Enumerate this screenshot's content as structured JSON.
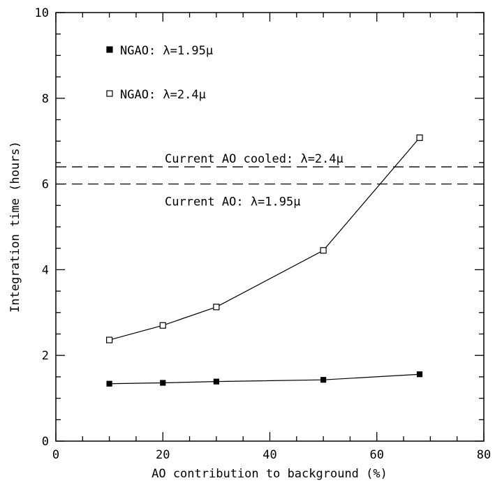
{
  "chart_data": {
    "type": "line",
    "xlabel": "AO contribution to background (%)",
    "ylabel": "Integration time (hours)",
    "xlim": [
      0,
      80
    ],
    "ylim": [
      0,
      10
    ],
    "x_major_ticks": [
      0,
      20,
      40,
      60,
      80
    ],
    "y_major_ticks": [
      0,
      2,
      4,
      6,
      8,
      10
    ],
    "x_minor_step": 5,
    "y_minor_step": 0.5,
    "grid": false,
    "series": [
      {
        "name": "NGAO: λ=1.95μ",
        "marker": "filled-square",
        "x": [
          10,
          20,
          30,
          50,
          68
        ],
        "y": [
          1.34,
          1.36,
          1.39,
          1.43,
          1.56
        ]
      },
      {
        "name": "NGAO: λ=2.4μ",
        "marker": "open-square",
        "x": [
          10,
          20,
          30,
          50,
          68
        ],
        "y": [
          2.36,
          2.7,
          3.13,
          4.45,
          7.08
        ]
      }
    ],
    "reference_lines": [
      {
        "label": "Current AO cooled: λ=2.4μ",
        "y": 6.4,
        "style": "dashed",
        "label_position": "above"
      },
      {
        "label": "Current AO: λ=1.95μ",
        "y": 6.0,
        "style": "dashed",
        "label_position": "below"
      }
    ],
    "legend_position": "top-left"
  }
}
